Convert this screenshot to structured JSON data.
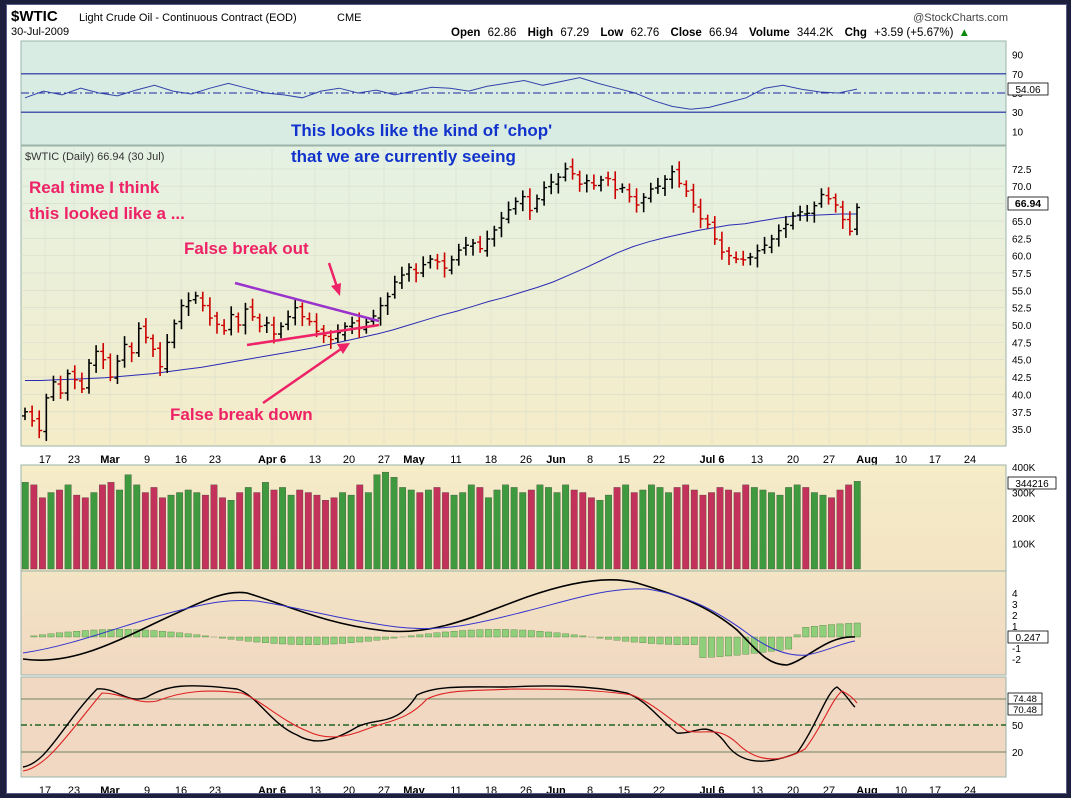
{
  "header": {
    "symbol": "$WTIC",
    "name": "Light Crude Oil - Continuous Contract (EOD)",
    "exchange": "CME",
    "date": "30-Jul-2009",
    "source": "@StockCharts.com",
    "open_label": "Open",
    "open": "62.86",
    "high_label": "High",
    "high": "67.29",
    "low_label": "Low",
    "low": "62.76",
    "close_label": "Close",
    "close": "66.94",
    "volume_label": "Volume",
    "volume": "344.2K",
    "chg_label": "Chg",
    "chg": "+3.59 (+5.67%)",
    "chg_arrow": "▲"
  },
  "annotations": {
    "chop_line1": "This looks like the kind of 'chop'",
    "chop_line2": "that we are currently seeing",
    "realtime_line1": "Real time I think",
    "realtime_line2": "this looked like a ...",
    "false_breakout": "False break out",
    "false_breakdown": "False break down",
    "price_legend": "$WTIC (Daily) 66.94 (30 Jul)"
  },
  "colors": {
    "up": "#000000",
    "down": "#cc0000",
    "volume_up": "#3f9a3f",
    "volume_down": "#c2325a",
    "ma": "#2b2bb5",
    "annotation_red": "#ee2266",
    "annotation_blue": "#1133cc",
    "triangle_purple": "#9933cc",
    "triangle_pink": "#ee2266"
  },
  "chart_data": [
    {
      "type": "line",
      "panel": "RSI",
      "series": [
        {
          "values": [
            45,
            52,
            48,
            55,
            50,
            47,
            53,
            58,
            52,
            49,
            55,
            60,
            55,
            50,
            48,
            45,
            52,
            55,
            50,
            53,
            48,
            52,
            56,
            55,
            52,
            57,
            60,
            63,
            58,
            62,
            66,
            60,
            55,
            50,
            42,
            36,
            33,
            35,
            40,
            45,
            55,
            58,
            54,
            51,
            50,
            54.06
          ]
        }
      ],
      "ylim": [
        0,
        100
      ],
      "ticks": [
        "90",
        "70",
        "50",
        "30",
        "10"
      ],
      "current_value": "54.06"
    },
    {
      "type": "line",
      "panel": "Price",
      "title": "$WTIC (Daily) 66.94 (30 Jul)",
      "x_ticks": [
        "17",
        "23",
        "Mar",
        "9",
        "16",
        "23",
        "Apr 6",
        "13",
        "20",
        "27",
        "May",
        "11",
        "18",
        "26",
        "Jun",
        "8",
        "15",
        "22",
        "Jul 6",
        "13",
        "20",
        "27",
        "Aug",
        "10",
        "17",
        "24"
      ],
      "y_ticks": [
        "72.5",
        "70.0",
        "67.5",
        "65.0",
        "62.5",
        "60.0",
        "57.5",
        "55.0",
        "52.5",
        "50.0",
        "47.5",
        "45.0",
        "42.5",
        "40.0",
        "37.5",
        "35.0"
      ],
      "ylim": [
        33.0,
        74.5
      ],
      "closes": [
        37.5,
        36.2,
        34.8,
        39.5,
        41.8,
        40.2,
        43.0,
        42.1,
        40.8,
        44.5,
        46.2,
        45.0,
        42.5,
        44.8,
        47.2,
        46.0,
        49.5,
        48.2,
        46.5,
        44.0,
        47.5,
        50.2,
        52.8,
        53.5,
        54.2,
        52.8,
        51.0,
        50.1,
        49.2,
        51.5,
        50.0,
        52.3,
        51.2,
        49.8,
        50.3,
        48.7,
        49.8,
        51.2,
        52.5,
        51.2,
        50.5,
        49.1,
        48.5,
        47.9,
        48.9,
        49.8,
        50.3,
        49.5,
        50.4,
        51.3,
        52.8,
        54.1,
        56.2,
        57.2,
        58.3,
        57.5,
        58.7,
        59.5,
        59.1,
        58.2,
        59.4,
        60.8,
        61.5,
        61.8,
        61.0,
        62.4,
        63.7,
        65.4,
        66.6,
        67.8,
        68.5,
        66.5,
        68.2,
        69.8,
        70.6,
        71.3,
        72.5,
        71.8,
        70.3,
        70.8,
        70.1,
        70.9,
        71.1,
        69.5,
        69.8,
        68.5,
        67.3,
        68.4,
        69.6,
        70.0,
        71.0,
        72.1,
        70.4,
        69.3,
        67.3,
        65.3,
        64.5,
        62.4,
        60.5,
        60.0,
        59.5,
        59.4,
        59.8,
        60.7,
        61.5,
        62.4,
        63.6,
        64.5,
        65.7,
        66.3,
        66.1,
        67.2,
        68.8,
        68.2,
        67.3,
        65.2,
        63.5,
        66.94
      ],
      "ma_200": [
        42.0,
        42.0,
        42.1,
        42.2,
        42.3,
        42.4,
        42.6,
        42.8,
        43.0,
        43.3,
        43.6,
        43.9,
        44.3,
        44.7,
        45.1,
        45.5,
        45.9,
        46.3,
        46.7,
        47.2,
        47.7,
        48.2,
        48.7,
        49.3,
        50.0,
        50.7,
        51.4,
        52.0,
        52.7,
        53.4,
        54.0,
        54.7,
        55.4,
        56.2,
        57.2,
        58.2,
        59.3,
        60.4,
        61.3,
        62.0,
        62.6,
        63.1,
        63.6,
        64.0,
        64.4,
        64.6,
        65.0,
        65.4,
        65.7,
        65.8,
        65.9,
        66.0,
        66.0
      ],
      "last_value": "66.94",
      "period": "Daily"
    },
    {
      "type": "bar",
      "panel": "Volume",
      "values": [
        340,
        330,
        280,
        300,
        310,
        330,
        290,
        280,
        300,
        330,
        340,
        310,
        370,
        330,
        300,
        320,
        280,
        290,
        300,
        310,
        300,
        290,
        330,
        280,
        270,
        300,
        320,
        300,
        340,
        310,
        320,
        290,
        310,
        300,
        290,
        270,
        280,
        300,
        290,
        330,
        300,
        370,
        380,
        360,
        320,
        310,
        300,
        310,
        320,
        300,
        290,
        300,
        330,
        320,
        280,
        310,
        330,
        320,
        300,
        310,
        330,
        320,
        300,
        330,
        310,
        300,
        280,
        270,
        290,
        320,
        330,
        300,
        310,
        330,
        320,
        300,
        320,
        330,
        310,
        290,
        300,
        320,
        310,
        300,
        330,
        320,
        310,
        300,
        290,
        320,
        330,
        320,
        300,
        290,
        280,
        310,
        330,
        344.2
      ],
      "ylim": [
        0,
        400000
      ],
      "ticks": [
        "400K",
        "300K",
        "200K",
        "100K"
      ],
      "current_value": "344216"
    },
    {
      "type": "line",
      "panel": "MACD",
      "ticks": [
        "4",
        "3",
        "2",
        "1",
        "0",
        "-1",
        "-2"
      ],
      "current_value": "0.247"
    },
    {
      "type": "line",
      "panel": "Stochastic",
      "ticks": [
        "80",
        "50",
        "20"
      ],
      "current_values": [
        "74.48",
        "70.48"
      ]
    }
  ]
}
